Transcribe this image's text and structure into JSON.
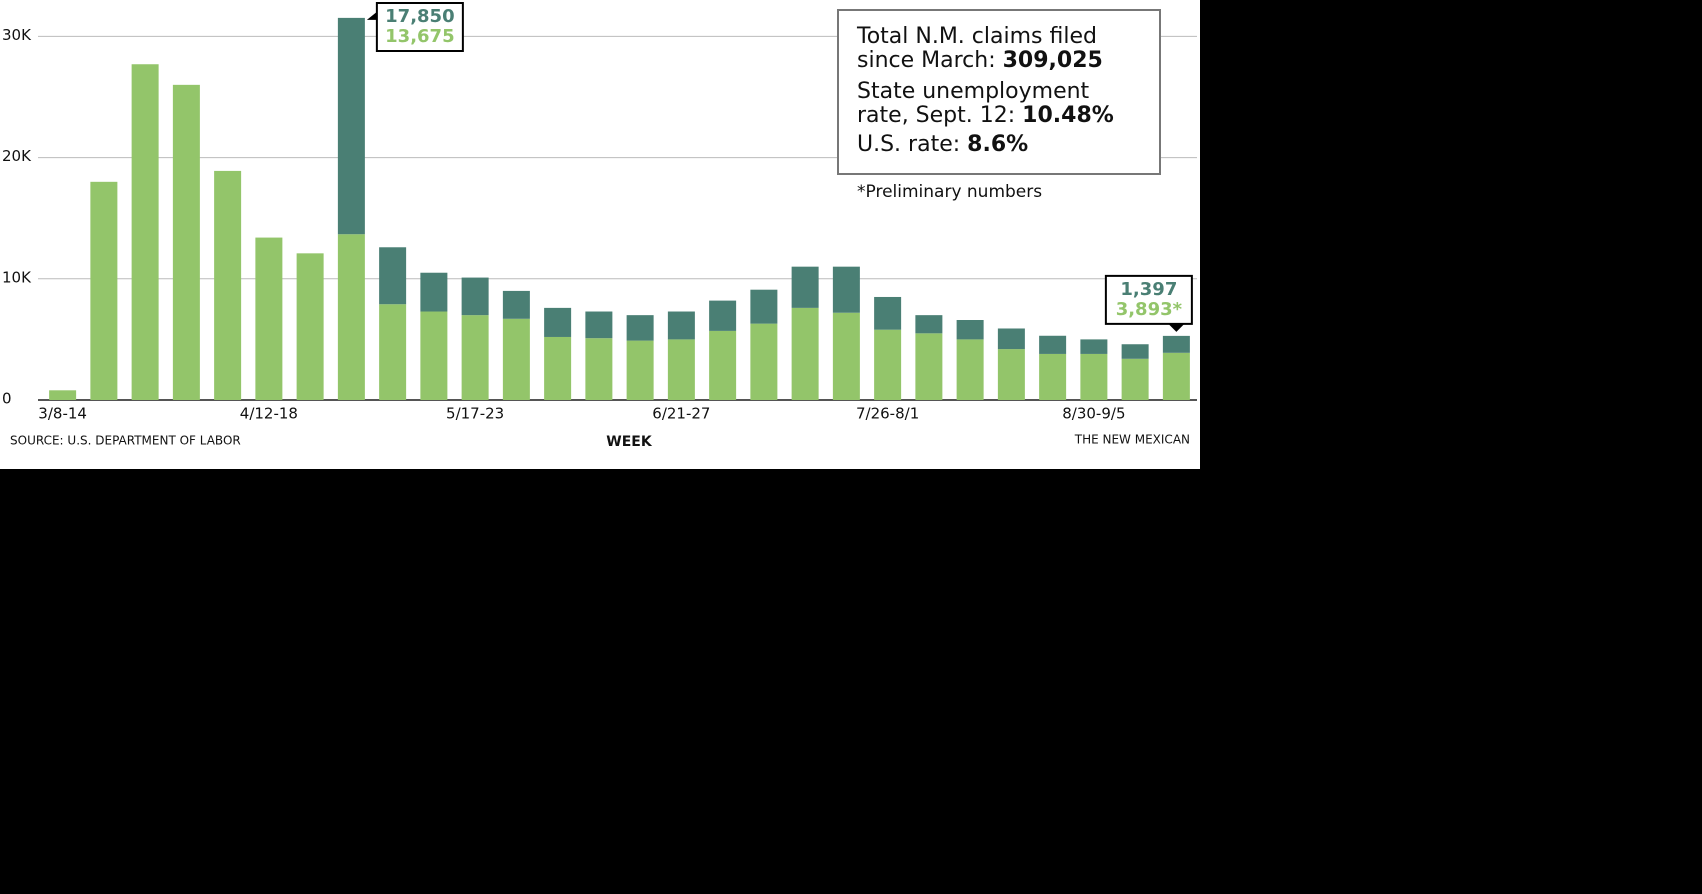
{
  "chart_data": {
    "type": "stacked-bar",
    "categories": [
      "3/8-14",
      null,
      null,
      null,
      null,
      "4/12-18",
      null,
      null,
      null,
      null,
      "5/17-23",
      null,
      null,
      null,
      null,
      "6/21-27",
      null,
      null,
      null,
      null,
      "7/26-8/1",
      null,
      null,
      null,
      null,
      "8/30-9/5",
      null,
      null
    ],
    "series": [
      {
        "color": "#93c56a",
        "values": [
          800,
          18000,
          27700,
          26000,
          18900,
          13400,
          12100,
          13675,
          7900,
          7300,
          7000,
          6700,
          5200,
          5100,
          4900,
          5000,
          5700,
          6300,
          7600,
          7200,
          5800,
          5500,
          5000,
          4200,
          3800,
          3800,
          3400,
          3893
        ],
        "value_labels": [
          null,
          null,
          null,
          null,
          null,
          null,
          null,
          "13,675",
          null,
          null,
          null,
          null,
          null,
          null,
          null,
          null,
          null,
          null,
          null,
          null,
          null,
          null,
          null,
          null,
          null,
          null,
          null,
          "3,893*"
        ]
      },
      {
        "color": "#4a7f74",
        "values": [
          0,
          0,
          0,
          0,
          0,
          0,
          0,
          17850,
          4700,
          3200,
          3100,
          2300,
          2400,
          2200,
          2100,
          2300,
          2500,
          2800,
          3400,
          3800,
          2700,
          1500,
          1600,
          1700,
          1500,
          1200,
          1200,
          1397
        ],
        "value_labels": [
          null,
          null,
          null,
          null,
          null,
          null,
          null,
          "17,850",
          null,
          null,
          null,
          null,
          null,
          null,
          null,
          null,
          null,
          null,
          null,
          null,
          null,
          null,
          null,
          null,
          null,
          null,
          null,
          "1,397"
        ]
      }
    ],
    "ylim": [
      0,
      33000
    ],
    "yticks": [
      0,
      {
        "value": 10000,
        "label": "10K"
      },
      {
        "value": 20000,
        "label": "20K"
      },
      {
        "value": 30000,
        "label": "30K"
      }
    ],
    "grid": true,
    "xlabel": "WEEK",
    "source": "SOURCE: U.S. DEPARTMENT OF LABOR",
    "credit": "THE NEW MEXICAN",
    "info_box": [
      {
        "lines": [
          "Total N.M. claims filed",
          "since March:"
        ],
        "value": "309,025"
      },
      {
        "lines": [
          "State unemployment",
          "rate, Sept. 12:"
        ],
        "value": "10.48%"
      },
      {
        "lines": [
          "U.S. rate:"
        ],
        "value": "8.6%"
      }
    ],
    "note": "*Preliminary numbers"
  }
}
